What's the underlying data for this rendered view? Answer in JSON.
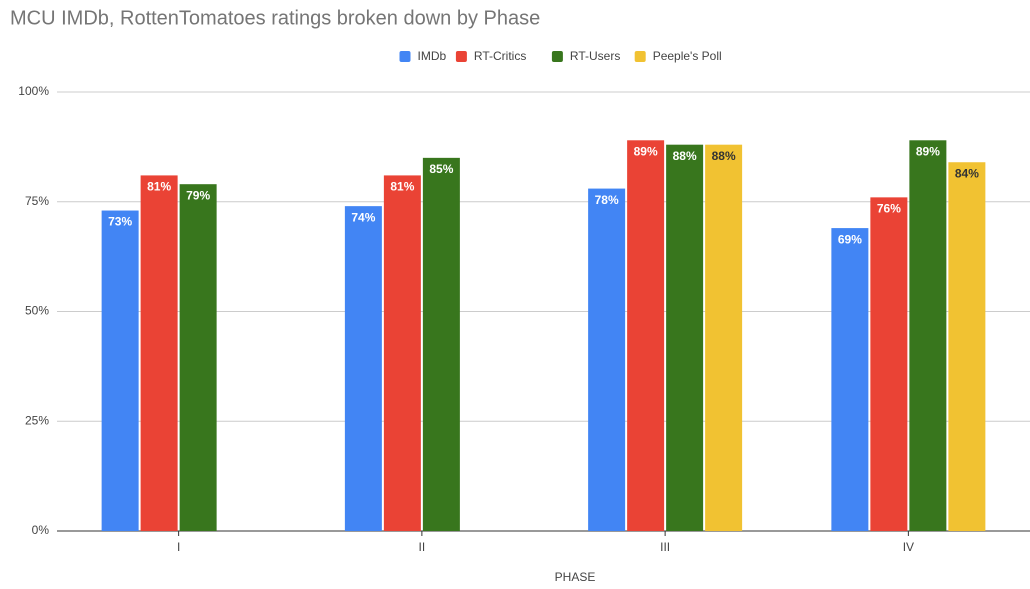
{
  "chart_data": {
    "type": "bar",
    "title": "MCU IMDb, RottenTomatoes ratings broken down by Phase",
    "x_label": "PHASE",
    "categories": [
      "I",
      "II",
      "III",
      "IV"
    ],
    "series": [
      {
        "name": "IMDb",
        "color": "#4285f4",
        "values": [
          73,
          74,
          78,
          69
        ],
        "value_labels": [
          "73%",
          "74%",
          "78%",
          "69%"
        ],
        "label_color": "#ffffff"
      },
      {
        "name": "RT-Critics",
        "color": "#ea4335",
        "values": [
          81,
          81,
          89,
          76
        ],
        "value_labels": [
          "81%",
          "81%",
          "89%",
          "76%"
        ],
        "label_color": "#ffffff"
      },
      {
        "name": "RT-Users",
        "color": "#38761d",
        "values": [
          79,
          85,
          88,
          89
        ],
        "value_labels": [
          "79%",
          "85%",
          "88%",
          "89%"
        ],
        "label_color": "#ffffff"
      },
      {
        "name": "Peeple's Poll",
        "color": "#f1c232",
        "values": [
          null,
          null,
          88,
          84
        ],
        "value_labels": [
          null,
          null,
          "88%",
          "84%"
        ],
        "label_color": "#333333"
      }
    ],
    "ylim": [
      0,
      100
    ],
    "yticks": [
      {
        "value": 0,
        "label": "0%"
      },
      {
        "value": 25,
        "label": "25%"
      },
      {
        "value": 50,
        "label": "50%"
      },
      {
        "value": 75,
        "label": "75%"
      },
      {
        "value": 100,
        "label": "100%"
      }
    ],
    "grid": true,
    "legend": "top"
  }
}
